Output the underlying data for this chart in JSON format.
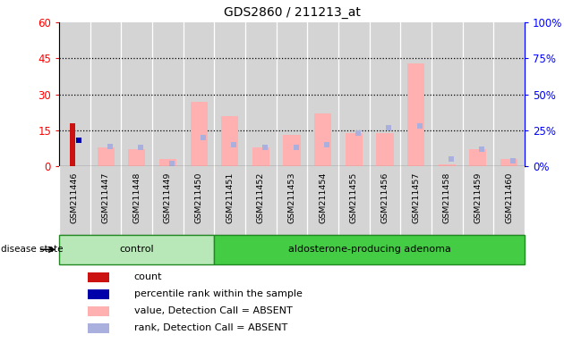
{
  "title": "GDS2860 / 211213_at",
  "samples": [
    "GSM211446",
    "GSM211447",
    "GSM211448",
    "GSM211449",
    "GSM211450",
    "GSM211451",
    "GSM211452",
    "GSM211453",
    "GSM211454",
    "GSM211455",
    "GSM211456",
    "GSM211457",
    "GSM211458",
    "GSM211459",
    "GSM211460"
  ],
  "n_control": 5,
  "n_adenoma": 10,
  "count": [
    18,
    0,
    0,
    0,
    0,
    0,
    0,
    0,
    0,
    0,
    0,
    0,
    0,
    0,
    0
  ],
  "percentile_rank": [
    18,
    0,
    0,
    0,
    0,
    0,
    0,
    0,
    0,
    0,
    0,
    0,
    0,
    0,
    0
  ],
  "value_absent": [
    0,
    8,
    7,
    3,
    27,
    21,
    8,
    13,
    22,
    14,
    14,
    43,
    1,
    7,
    3
  ],
  "rank_absent": [
    0,
    14,
    13,
    2,
    20,
    15,
    13,
    13,
    15,
    23,
    27,
    28,
    5,
    12,
    4
  ],
  "ylim_left": [
    0,
    60
  ],
  "ylim_right": [
    0,
    100
  ],
  "yticks_left": [
    0,
    15,
    30,
    45,
    60
  ],
  "yticks_right": [
    0,
    25,
    50,
    75,
    100
  ],
  "yticklabels_left": [
    "0",
    "15",
    "30",
    "45",
    "60"
  ],
  "yticklabels_right": [
    "0%",
    "25%",
    "50%",
    "75%",
    "100%"
  ],
  "color_count": "#cc1111",
  "color_rank": "#0000aa",
  "color_value_absent": "#ffb0b0",
  "color_rank_absent": "#aab0dd",
  "color_plot_bg": "#d4d4d4",
  "color_control_bg": "#b8e8b8",
  "color_adenoma_bg": "#44cc44",
  "disease_state_label": "disease state",
  "group_control_label": "control",
  "group_adenoma_label": "aldosterone-producing adenoma",
  "legend_items": [
    {
      "label": "count",
      "color": "#cc1111"
    },
    {
      "label": "percentile rank within the sample",
      "color": "#0000aa"
    },
    {
      "label": "value, Detection Call = ABSENT",
      "color": "#ffb0b0"
    },
    {
      "label": "rank, Detection Call = ABSENT",
      "color": "#aab0dd"
    }
  ]
}
